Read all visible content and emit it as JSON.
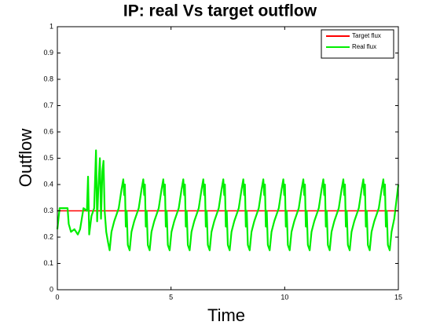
{
  "chart_data": {
    "type": "line",
    "title": "IP: real Vs target outflow",
    "x_label": "Time",
    "y_label": "Outflow",
    "xlim": [
      0,
      15
    ],
    "xticks": [
      0,
      5,
      10,
      15
    ],
    "ylim": [
      0,
      1
    ],
    "yticks": [
      0,
      0.1,
      0.2,
      0.3,
      0.4,
      0.5,
      0.6,
      0.7,
      0.8,
      0.9,
      1
    ],
    "legend": "northeast",
    "series": [
      {
        "name": "Target flux",
        "color": "#ff0000",
        "x": [
          0,
          15
        ],
        "values": [
          0.3,
          0.3
        ]
      },
      {
        "name": "Real flux",
        "color": "#00ee00",
        "x": [
          0,
          0.1,
          0.45,
          0.5,
          0.6,
          0.75,
          0.9,
          1.0,
          1.15,
          1.3,
          1.35,
          1.4,
          1.5,
          1.62,
          1.7,
          1.75,
          1.8,
          1.87,
          1.92,
          1.98,
          2.03,
          2.08,
          2.15,
          2.23,
          2.3,
          2.38,
          2.5,
          2.7,
          2.82,
          2.9,
          2.94,
          2.97,
          3.01,
          3.05,
          3.1,
          3.18,
          3.26,
          3.38,
          3.58,
          3.7,
          3.78,
          3.82,
          3.85,
          3.89,
          3.93,
          3.98,
          4.06,
          4.14,
          4.26,
          4.46,
          4.58,
          4.66,
          4.7,
          4.73,
          4.77,
          4.81,
          4.86,
          4.94,
          5.02,
          5.14,
          5.34,
          5.46,
          5.54,
          5.58,
          5.61,
          5.65,
          5.69,
          5.74,
          5.82,
          5.9,
          6.02,
          6.22,
          6.34,
          6.42,
          6.46,
          6.49,
          6.53,
          6.57,
          6.62,
          6.7,
          6.78,
          6.9,
          7.1,
          7.22,
          7.3,
          7.34,
          7.37,
          7.41,
          7.45,
          7.5,
          7.58,
          7.66,
          7.78,
          7.98,
          8.1,
          8.18,
          8.22,
          8.25,
          8.29,
          8.33,
          8.38,
          8.46,
          8.54,
          8.66,
          8.86,
          8.98,
          9.06,
          9.1,
          9.13,
          9.17,
          9.21,
          9.26,
          9.34,
          9.42,
          9.54,
          9.74,
          9.86,
          9.94,
          9.98,
          10.01,
          10.05,
          10.09,
          10.14,
          10.22,
          10.3,
          10.42,
          10.62,
          10.74,
          10.82,
          10.86,
          10.89,
          10.93,
          10.97,
          11.02,
          11.1,
          11.18,
          11.3,
          11.5,
          11.62,
          11.7,
          11.74,
          11.77,
          11.81,
          11.85,
          11.9,
          11.98,
          12.06,
          12.18,
          12.38,
          12.5,
          12.58,
          12.62,
          12.65,
          12.69,
          12.73,
          12.78,
          12.86,
          12.94,
          13.06,
          13.26,
          13.38,
          13.46,
          13.5,
          13.53,
          13.57,
          13.61,
          13.66,
          13.74,
          13.82,
          13.94,
          14.14,
          14.26,
          14.34,
          14.38,
          14.41,
          14.45,
          14.49,
          14.54,
          14.62,
          14.7,
          14.82,
          15
        ],
        "values": [
          0.23,
          0.31,
          0.31,
          0.25,
          0.22,
          0.23,
          0.21,
          0.23,
          0.31,
          0.3,
          0.43,
          0.21,
          0.28,
          0.31,
          0.53,
          0.26,
          0.38,
          0.5,
          0.27,
          0.45,
          0.49,
          0.3,
          0.22,
          0.18,
          0.15,
          0.22,
          0.26,
          0.31,
          0.38,
          0.42,
          0.36,
          0.4,
          0.24,
          0.3,
          0.17,
          0.15,
          0.22,
          0.26,
          0.31,
          0.38,
          0.42,
          0.36,
          0.4,
          0.24,
          0.3,
          0.17,
          0.15,
          0.22,
          0.26,
          0.31,
          0.38,
          0.42,
          0.36,
          0.4,
          0.24,
          0.3,
          0.17,
          0.15,
          0.22,
          0.26,
          0.31,
          0.38,
          0.42,
          0.36,
          0.4,
          0.24,
          0.3,
          0.17,
          0.15,
          0.22,
          0.26,
          0.31,
          0.38,
          0.42,
          0.36,
          0.4,
          0.24,
          0.3,
          0.17,
          0.15,
          0.22,
          0.26,
          0.31,
          0.38,
          0.42,
          0.36,
          0.4,
          0.24,
          0.3,
          0.17,
          0.15,
          0.22,
          0.26,
          0.31,
          0.38,
          0.42,
          0.36,
          0.4,
          0.24,
          0.3,
          0.17,
          0.15,
          0.22,
          0.26,
          0.31,
          0.38,
          0.42,
          0.36,
          0.4,
          0.24,
          0.3,
          0.17,
          0.15,
          0.22,
          0.26,
          0.31,
          0.38,
          0.42,
          0.36,
          0.4,
          0.24,
          0.3,
          0.17,
          0.15,
          0.22,
          0.26,
          0.31,
          0.38,
          0.42,
          0.36,
          0.4,
          0.24,
          0.3,
          0.17,
          0.15,
          0.22,
          0.26,
          0.31,
          0.38,
          0.42,
          0.36,
          0.4,
          0.24,
          0.3,
          0.17,
          0.15,
          0.22,
          0.26,
          0.31,
          0.38,
          0.42,
          0.36,
          0.4,
          0.24,
          0.3,
          0.17,
          0.15,
          0.22,
          0.26,
          0.31,
          0.38,
          0.42,
          0.36,
          0.4,
          0.24,
          0.3,
          0.17,
          0.15,
          0.22,
          0.26,
          0.31,
          0.38,
          0.42,
          0.36,
          0.4,
          0.24,
          0.3,
          0.17,
          0.15,
          0.22,
          0.27,
          0.4
        ]
      }
    ]
  }
}
